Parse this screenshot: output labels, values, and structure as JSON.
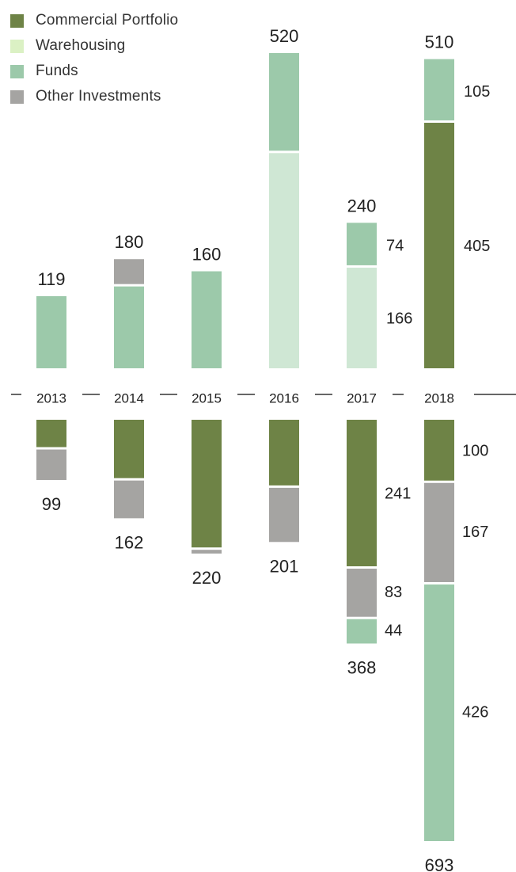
{
  "colors": {
    "commercial": "#6e8346",
    "warehousing": "#cfe7d4",
    "warehousing_legend": "#dbf1c4",
    "funds": "#9cc9aa",
    "other": "#a5a4a2",
    "axis": "#333333"
  },
  "legend": [
    {
      "name": "Commercial Portfolio",
      "color": "#6e8346"
    },
    {
      "name": "Warehousing",
      "color": "#dbf1c4"
    },
    {
      "name": "Funds",
      "color": "#9cc9aa"
    },
    {
      "name": "Other Investments",
      "color": "#a5a4a2"
    }
  ],
  "chart_data": {
    "type": "bar",
    "categories": [
      "2013",
      "2014",
      "2015",
      "2016",
      "2017",
      "2018"
    ],
    "upper": {
      "totals": [
        "119",
        "180",
        "160",
        "520",
        "240",
        "510"
      ],
      "stacks": [
        [
          {
            "series": "Funds",
            "value": 119
          }
        ],
        [
          {
            "series": "Funds",
            "value": 135
          },
          {
            "series": "Other Investments",
            "value": 45
          }
        ],
        [
          {
            "series": "Funds",
            "value": 160
          }
        ],
        [
          {
            "series": "Warehousing",
            "value": 355
          },
          {
            "series": "Funds",
            "value": 165
          }
        ],
        [
          {
            "series": "Warehousing",
            "value": 166,
            "label": "166"
          },
          {
            "series": "Funds",
            "value": 74,
            "label": "74"
          }
        ],
        [
          {
            "series": "Commercial Portfolio",
            "value": 405,
            "label": "405"
          },
          {
            "series": "Funds",
            "value": 105,
            "label": "105"
          }
        ]
      ]
    },
    "lower": {
      "totals": [
        "99",
        "162",
        "220",
        "201",
        "368",
        "693"
      ],
      "stacks": [
        [
          {
            "series": "Commercial Portfolio",
            "value": 45
          },
          {
            "series": "Other Investments",
            "value": 54
          }
        ],
        [
          {
            "series": "Commercial Portfolio",
            "value": 96
          },
          {
            "series": "Other Investments",
            "value": 66
          }
        ],
        [
          {
            "series": "Commercial Portfolio",
            "value": 210
          },
          {
            "series": "Other Investments",
            "value": 10
          }
        ],
        [
          {
            "series": "Commercial Portfolio",
            "value": 108
          },
          {
            "series": "Other Investments",
            "value": 93
          }
        ],
        [
          {
            "series": "Commercial Portfolio",
            "value": 241,
            "label": "241"
          },
          {
            "series": "Other Investments",
            "value": 83,
            "label": "83"
          },
          {
            "series": "Funds",
            "value": 44,
            "label": "44"
          }
        ],
        [
          {
            "series": "Commercial Portfolio",
            "value": 100,
            "label": "100"
          },
          {
            "series": "Other Investments",
            "value": 167,
            "label": "167"
          },
          {
            "series": "Funds",
            "value": 426,
            "label": "426"
          }
        ]
      ]
    }
  }
}
